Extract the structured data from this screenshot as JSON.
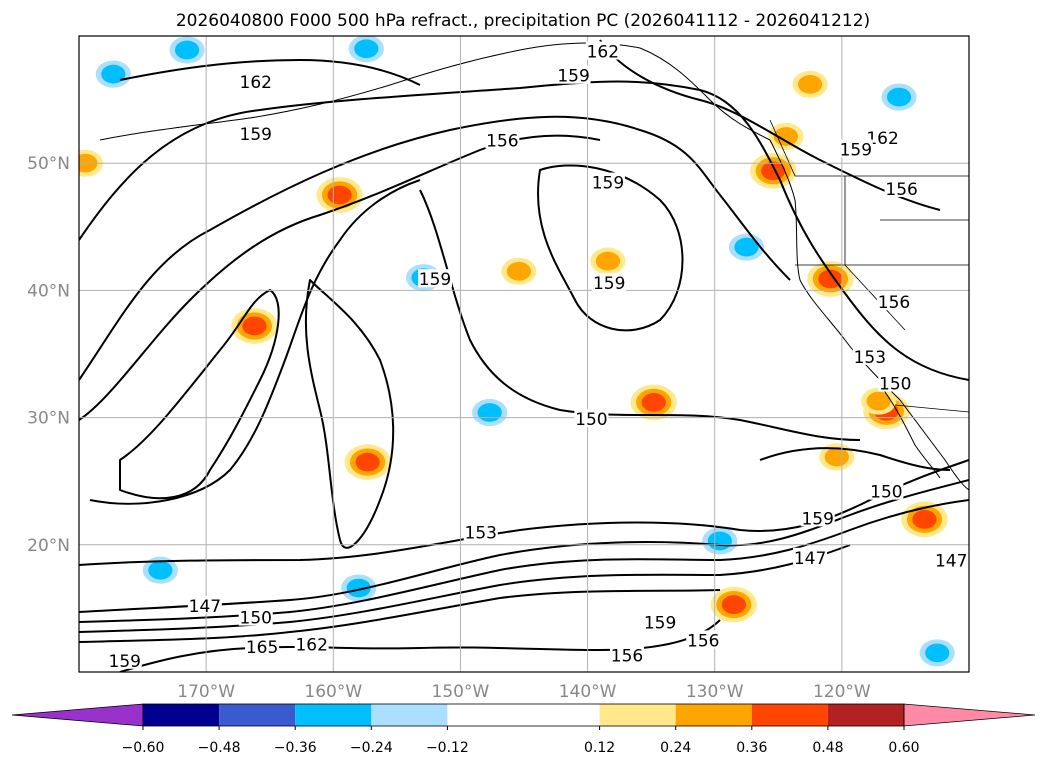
{
  "chart_data": {
    "type": "contour-map",
    "title": "2026040800 F000 500 hPa refract., precipitation PC (2026041112 - 2026041212)",
    "map": {
      "lon_range": [
        -180,
        -110
      ],
      "lat_range": [
        10,
        60
      ],
      "x_ticks": [
        "170°W",
        "160°W",
        "150°W",
        "140°W",
        "130°W",
        "120°W"
      ],
      "x_tick_values": [
        -170,
        -160,
        -150,
        -140,
        -130,
        -120
      ],
      "y_ticks": [
        "20°N",
        "30°N",
        "40°N",
        "50°N"
      ],
      "y_tick_values": [
        20,
        30,
        40,
        50
      ],
      "grid": true
    },
    "colorbar": {
      "ticks": [
        "−0.60",
        "−0.48",
        "−0.36",
        "−0.24",
        "−0.12",
        "0.12",
        "0.24",
        "0.36",
        "0.48",
        "0.60"
      ],
      "tick_values": [
        -0.6,
        -0.48,
        -0.36,
        -0.24,
        -0.12,
        0.12,
        0.24,
        0.36,
        0.48,
        0.6
      ],
      "bins": [
        {
          "from": -0.72,
          "to": -0.6,
          "color": "#9932cc",
          "extend": "min"
        },
        {
          "from": -0.6,
          "to": -0.48,
          "color": "#000090"
        },
        {
          "from": -0.48,
          "to": -0.36,
          "color": "#3a5bd0"
        },
        {
          "from": -0.36,
          "to": -0.24,
          "color": "#00bfff"
        },
        {
          "from": -0.24,
          "to": -0.12,
          "color": "#aadfff"
        },
        {
          "from": -0.12,
          "to": 0.12,
          "color": "#ffffff"
        },
        {
          "from": 0.12,
          "to": 0.24,
          "color": "#ffe98a"
        },
        {
          "from": 0.24,
          "to": 0.36,
          "color": "#ffa500"
        },
        {
          "from": 0.36,
          "to": 0.48,
          "color": "#ff4500"
        },
        {
          "from": 0.48,
          "to": 0.6,
          "color": "#b22222"
        },
        {
          "from": 0.6,
          "to": 0.72,
          "color": "#ff8aa8",
          "extend": "max"
        }
      ]
    },
    "contour_labels": [
      {
        "text": "162",
        "lon": -166.1,
        "lat": 56.3
      },
      {
        "text": "159",
        "lon": -166.1,
        "lat": 52.2
      },
      {
        "text": "156",
        "lon": -146.7,
        "lat": 51.7
      },
      {
        "text": "159",
        "lon": -138.4,
        "lat": 48.4
      },
      {
        "text": "159",
        "lon": -141.1,
        "lat": 56.8
      },
      {
        "text": "162",
        "lon": -138.8,
        "lat": 58.7
      },
      {
        "text": "162",
        "lon": -116.8,
        "lat": 51.9
      },
      {
        "text": "159",
        "lon": -118.9,
        "lat": 51.0
      },
      {
        "text": "156",
        "lon": -115.3,
        "lat": 47.9
      },
      {
        "text": "159",
        "lon": -152.0,
        "lat": 40.8
      },
      {
        "text": "159",
        "lon": -138.3,
        "lat": 40.5
      },
      {
        "text": "156",
        "lon": -115.9,
        "lat": 39.0
      },
      {
        "text": "153",
        "lon": -117.8,
        "lat": 34.7
      },
      {
        "text": "150",
        "lon": -115.8,
        "lat": 32.6
      },
      {
        "text": "150",
        "lon": -139.7,
        "lat": 29.8
      },
      {
        "text": "153",
        "lon": -148.4,
        "lat": 20.9
      },
      {
        "text": "159",
        "lon": -121.9,
        "lat": 22.0
      },
      {
        "text": "150",
        "lon": -116.5,
        "lat": 24.1
      },
      {
        "text": "147",
        "lon": -122.5,
        "lat": 18.9
      },
      {
        "text": "147",
        "lon": -111.4,
        "lat": 18.7
      },
      {
        "text": "147",
        "lon": -170.1,
        "lat": 15.1
      },
      {
        "text": "150",
        "lon": -166.1,
        "lat": 14.2
      },
      {
        "text": "165",
        "lon": -165.6,
        "lat": 11.9
      },
      {
        "text": "162",
        "lon": -161.7,
        "lat": 12.1
      },
      {
        "text": "159",
        "lon": -176.4,
        "lat": 10.8
      },
      {
        "text": "159",
        "lon": -134.3,
        "lat": 13.8
      },
      {
        "text": "156",
        "lon": -130.9,
        "lat": 12.4
      },
      {
        "text": "156",
        "lon": -136.9,
        "lat": 11.2
      }
    ],
    "precipitation_blobs": [
      {
        "lon": -159.5,
        "lat": 47.5,
        "value": 0.42
      },
      {
        "lon": -166.2,
        "lat": 37.2,
        "value": 0.4
      },
      {
        "lon": -157.3,
        "lat": 26.5,
        "value": 0.42
      },
      {
        "lon": -134.8,
        "lat": 31.2,
        "value": 0.4
      },
      {
        "lon": -128.5,
        "lat": 15.3,
        "value": 0.4
      },
      {
        "lon": -113.5,
        "lat": 22.0,
        "value": 0.45
      },
      {
        "lon": -116.5,
        "lat": 30.5,
        "value": 0.36
      },
      {
        "lon": -125.4,
        "lat": 49.4,
        "value": 0.38
      },
      {
        "lon": -120.9,
        "lat": 40.9,
        "value": 0.4
      },
      {
        "lon": -117.1,
        "lat": 31.3,
        "value": 0.3
      },
      {
        "lon": -122.5,
        "lat": 56.2,
        "value": 0.3
      },
      {
        "lon": -124.4,
        "lat": 52.1,
        "value": 0.3
      },
      {
        "lon": -145.4,
        "lat": 41.5,
        "value": 0.3
      },
      {
        "lon": -179.5,
        "lat": 50.0,
        "value": 0.32
      },
      {
        "lon": -138.4,
        "lat": 42.3,
        "value": 0.3
      },
      {
        "lon": -120.4,
        "lat": 26.9,
        "value": 0.3
      },
      {
        "lon": -157.4,
        "lat": 59.0,
        "value": -0.32
      },
      {
        "lon": -171.5,
        "lat": 58.9,
        "value": -0.3
      },
      {
        "lon": -115.5,
        "lat": 55.2,
        "value": -0.32
      },
      {
        "lon": -152.9,
        "lat": 41.0,
        "value": -0.32
      },
      {
        "lon": -127.5,
        "lat": 43.4,
        "value": -0.3
      },
      {
        "lon": -112.5,
        "lat": 11.5,
        "value": -0.32
      },
      {
        "lon": -173.6,
        "lat": 18.0,
        "value": -0.3
      },
      {
        "lon": -158.0,
        "lat": 16.6,
        "value": -0.3
      },
      {
        "lon": -129.6,
        "lat": 20.3,
        "value": -0.28
      },
      {
        "lon": -147.7,
        "lat": 30.4,
        "value": -0.24
      },
      {
        "lon": -177.3,
        "lat": 57.0,
        "value": -0.3
      }
    ]
  }
}
